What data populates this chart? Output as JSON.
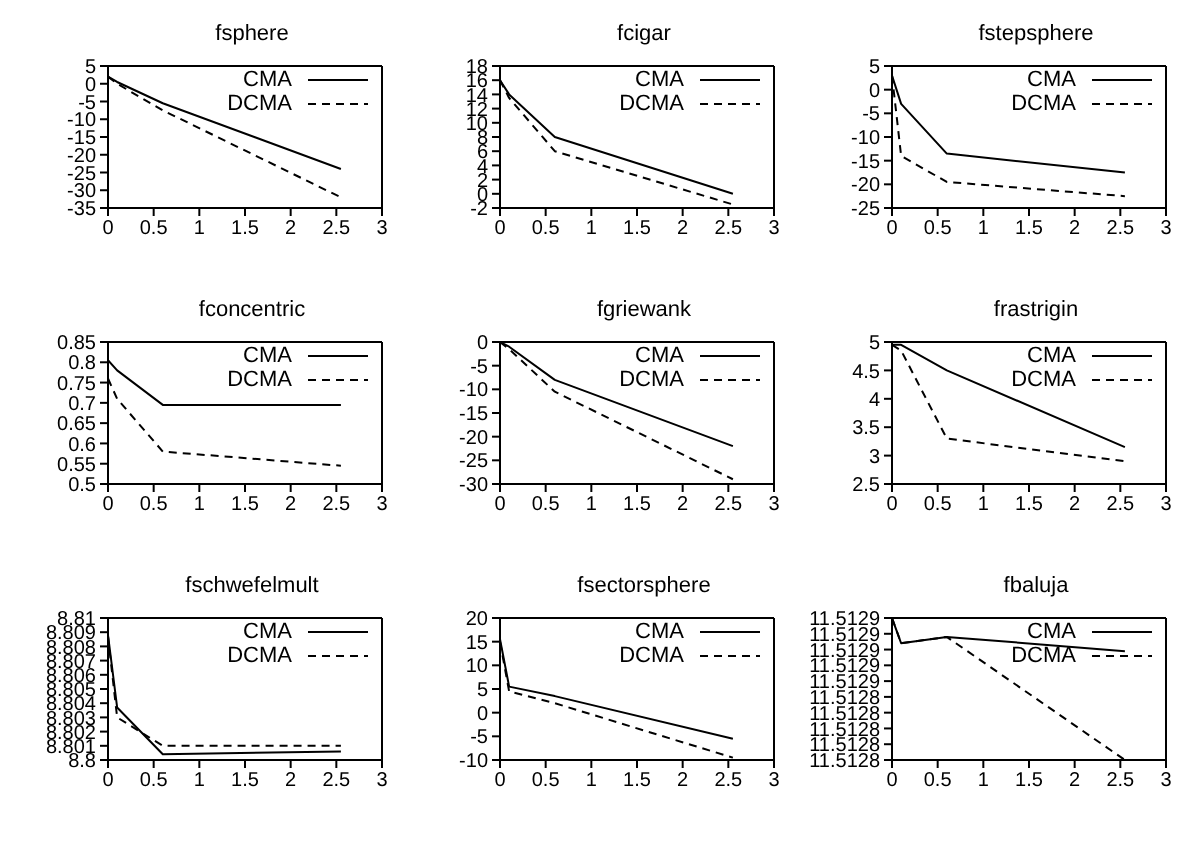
{
  "chart_data": [
    {
      "type": "line",
      "title": "fsphere",
      "x": [
        0,
        0.1,
        0.6,
        2.55
      ],
      "xlim": [
        0,
        3
      ],
      "xticks": [
        0,
        0.5,
        1,
        1.5,
        2,
        2.5,
        3
      ],
      "ylim": [
        -35,
        5
      ],
      "yticks": [
        -35,
        -30,
        -25,
        -20,
        -15,
        -10,
        -5,
        0,
        5
      ],
      "legend": "top right",
      "series": [
        {
          "name": "CMA",
          "color": "#000000",
          "line_style": "solid",
          "values": [
            2,
            0.5,
            -5.5,
            -24
          ]
        },
        {
          "name": "DCMA",
          "color": "#000000",
          "line_style": "dashed",
          "values": [
            2,
            0,
            -7.5,
            -32
          ]
        }
      ]
    },
    {
      "type": "line",
      "title": "fcigar",
      "x": [
        0,
        0.1,
        0.6,
        2.55
      ],
      "xlim": [
        0,
        3
      ],
      "xticks": [
        0,
        0.5,
        1,
        1.5,
        2,
        2.5,
        3
      ],
      "ylim": [
        -2,
        18
      ],
      "yticks": [
        -2,
        0,
        2,
        4,
        6,
        8,
        10,
        12,
        14,
        16,
        18
      ],
      "legend": "top right",
      "series": [
        {
          "name": "CMA",
          "color": "#000000",
          "line_style": "solid",
          "values": [
            16,
            14,
            8,
            0
          ]
        },
        {
          "name": "DCMA",
          "color": "#000000",
          "line_style": "dashed",
          "values": [
            16,
            13.5,
            6,
            -1.5
          ]
        }
      ]
    },
    {
      "type": "line",
      "title": "fstepsphere",
      "x": [
        0,
        0.1,
        0.6,
        2.55
      ],
      "xlim": [
        0,
        3
      ],
      "xticks": [
        0,
        0.5,
        1,
        1.5,
        2,
        2.5,
        3
      ],
      "ylim": [
        -25,
        5
      ],
      "yticks": [
        -25,
        -20,
        -15,
        -10,
        -5,
        0,
        5
      ],
      "legend": "top right",
      "series": [
        {
          "name": "CMA",
          "color": "#000000",
          "line_style": "solid",
          "values": [
            3,
            -3,
            -13.5,
            -17.5
          ]
        },
        {
          "name": "DCMA",
          "color": "#000000",
          "line_style": "dashed",
          "values": [
            3,
            -14,
            -19.5,
            -22.5
          ]
        }
      ]
    },
    {
      "type": "line",
      "title": "fconcentric",
      "x": [
        0,
        0.1,
        0.6,
        2.55
      ],
      "xlim": [
        0,
        3
      ],
      "xticks": [
        0,
        0.5,
        1,
        1.5,
        2,
        2.5,
        3
      ],
      "ylim": [
        0.5,
        0.85
      ],
      "yticks": [
        0.5,
        0.55,
        0.6,
        0.65,
        0.7,
        0.75,
        0.8,
        0.85
      ],
      "legend": "top right",
      "series": [
        {
          "name": "CMA",
          "color": "#000000",
          "line_style": "solid",
          "values": [
            0.805,
            0.78,
            0.695,
            0.695
          ]
        },
        {
          "name": "DCMA",
          "color": "#000000",
          "line_style": "dashed",
          "values": [
            0.76,
            0.71,
            0.58,
            0.545
          ]
        }
      ]
    },
    {
      "type": "line",
      "title": "fgriewank",
      "x": [
        0,
        0.1,
        0.6,
        2.55
      ],
      "xlim": [
        0,
        3
      ],
      "xticks": [
        0,
        0.5,
        1,
        1.5,
        2,
        2.5,
        3
      ],
      "ylim": [
        -30,
        0
      ],
      "yticks": [
        -30,
        -25,
        -20,
        -15,
        -10,
        -5,
        0
      ],
      "legend": "top right",
      "series": [
        {
          "name": "CMA",
          "color": "#000000",
          "line_style": "solid",
          "values": [
            0,
            -1,
            -8,
            -22
          ]
        },
        {
          "name": "DCMA",
          "color": "#000000",
          "line_style": "dashed",
          "values": [
            0,
            -1.5,
            -10.5,
            -29
          ]
        }
      ]
    },
    {
      "type": "line",
      "title": "frastrigin",
      "x": [
        0,
        0.1,
        0.6,
        2.55
      ],
      "xlim": [
        0,
        3
      ],
      "xticks": [
        0,
        0.5,
        1,
        1.5,
        2,
        2.5,
        3
      ],
      "ylim": [
        2.5,
        5
      ],
      "yticks": [
        2.5,
        3,
        3.5,
        4,
        4.5,
        5
      ],
      "legend": "top right",
      "series": [
        {
          "name": "CMA",
          "color": "#000000",
          "line_style": "solid",
          "values": [
            4.95,
            4.95,
            4.5,
            3.15
          ]
        },
        {
          "name": "DCMA",
          "color": "#000000",
          "line_style": "dashed",
          "values": [
            4.95,
            4.85,
            3.3,
            2.9
          ]
        }
      ]
    },
    {
      "type": "line",
      "title": "fschwefelmult",
      "x": [
        0,
        0.1,
        0.6,
        2.55
      ],
      "xlim": [
        0,
        3
      ],
      "xticks": [
        0,
        0.5,
        1,
        1.5,
        2,
        2.5,
        3
      ],
      "ylim": [
        8.8,
        8.81
      ],
      "yticks": [
        8.8,
        8.801,
        8.802,
        8.803,
        8.804,
        8.805,
        8.806,
        8.807,
        8.808,
        8.809,
        8.81
      ],
      "legend": "top right",
      "series": [
        {
          "name": "CMA",
          "color": "#000000",
          "line_style": "solid",
          "values": [
            8.8088,
            8.8037,
            8.8004,
            8.8006
          ]
        },
        {
          "name": "DCMA",
          "color": "#000000",
          "line_style": "dashed",
          "values": [
            8.8087,
            8.803,
            8.801,
            8.801
          ]
        }
      ]
    },
    {
      "type": "line",
      "title": "fsectorsphere",
      "x": [
        0,
        0.1,
        0.6,
        2.55
      ],
      "xlim": [
        0,
        3
      ],
      "xticks": [
        0,
        0.5,
        1,
        1.5,
        2,
        2.5,
        3
      ],
      "ylim": [
        -10,
        20
      ],
      "yticks": [
        -10,
        -5,
        0,
        5,
        10,
        15,
        20
      ],
      "legend": "top right",
      "series": [
        {
          "name": "CMA",
          "color": "#000000",
          "line_style": "solid",
          "values": [
            15.5,
            5.5,
            3.5,
            -5.5
          ]
        },
        {
          "name": "DCMA",
          "color": "#000000",
          "line_style": "dashed",
          "values": [
            15,
            4.5,
            2,
            -9.5
          ]
        }
      ]
    },
    {
      "type": "line",
      "title": "fbaluja",
      "x": [
        0,
        0.1,
        0.6,
        2.55
      ],
      "xlim": [
        0,
        3
      ],
      "xticks": [
        0,
        0.5,
        1,
        1.5,
        2,
        2.5,
        3
      ],
      "ylim": [
        11.5128,
        11.51289
      ],
      "yticks": [
        {
          "value": 11.5128,
          "label": "11.5128"
        },
        {
          "value": 11.51281,
          "label": "11.5128"
        },
        {
          "value": 11.51282,
          "label": "11.5128"
        },
        {
          "value": 11.51283,
          "label": "11.5128"
        },
        {
          "value": 11.51284,
          "label": "11.5128"
        },
        {
          "value": 11.51285,
          "label": "11.5129"
        },
        {
          "value": 11.51286,
          "label": "11.5129"
        },
        {
          "value": 11.51287,
          "label": "11.5129"
        },
        {
          "value": 11.51288,
          "label": "11.5129"
        },
        {
          "value": 11.51289,
          "label": "11.5129"
        }
      ],
      "legend": "top right",
      "series": [
        {
          "name": "CMA",
          "color": "#000000",
          "line_style": "solid",
          "values": [
            11.51289,
            11.512874,
            11.512878,
            11.512869
          ]
        },
        {
          "name": "DCMA",
          "color": "#000000",
          "line_style": "dashed",
          "values": [
            11.51289,
            11.512874,
            11.512878,
            11.5128
          ]
        }
      ]
    }
  ]
}
